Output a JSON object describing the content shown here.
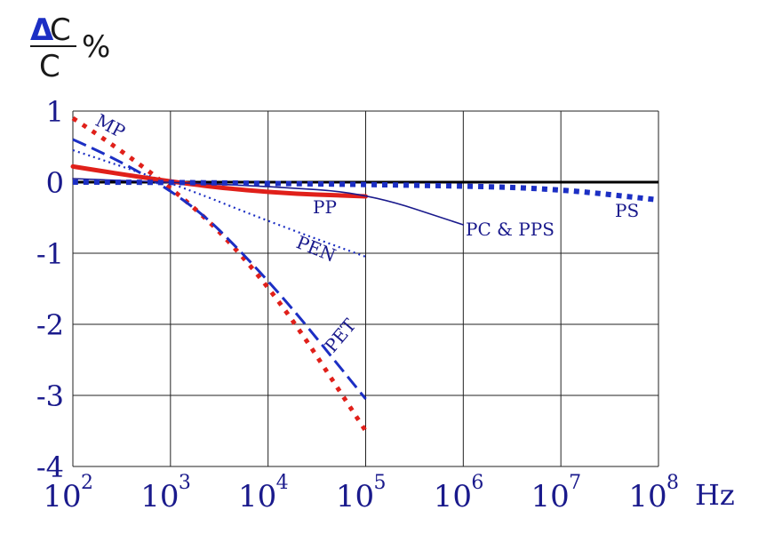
{
  "chart_data": {
    "type": "line",
    "ylabel": {
      "delta": "Δ",
      "numer": "C",
      "denom": "C",
      "unit": "%"
    },
    "xlabel_unit": "Hz",
    "x_scale": "log",
    "x_ticks": [
      {
        "base": "10",
        "exp": "2",
        "value": 100
      },
      {
        "base": "10",
        "exp": "3",
        "value": 1000
      },
      {
        "base": "10",
        "exp": "4",
        "value": 10000
      },
      {
        "base": "10",
        "exp": "5",
        "value": 100000
      },
      {
        "base": "10",
        "exp": "6",
        "value": 1000000
      },
      {
        "base": "10",
        "exp": "7",
        "value": 10000000
      },
      {
        "base": "10",
        "exp": "8",
        "value": 100000000
      }
    ],
    "y_ticks": [
      "1",
      "0",
      "-1",
      "-2",
      "-3",
      "-4"
    ],
    "xlim": [
      100,
      100000000
    ],
    "ylim": [
      -4,
      1
    ],
    "grid": true,
    "series": [
      {
        "name": "MP",
        "color": "#e0201a",
        "style": "dotted-thick",
        "x": [
          100,
          1000,
          10000,
          100000
        ],
        "y": [
          0.9,
          0.0,
          -1.4,
          -3.5
        ]
      },
      {
        "name": "PET",
        "color": "#1c2fc4",
        "style": "dashed",
        "x": [
          100,
          1000,
          10000,
          100000
        ],
        "y": [
          0.6,
          0.0,
          -1.35,
          -3.05
        ]
      },
      {
        "name": "PEN",
        "color": "#1c2fc4",
        "style": "dotted",
        "x": [
          100,
          1000,
          10000,
          100000
        ],
        "y": [
          0.45,
          0.0,
          -0.55,
          -1.05
        ]
      },
      {
        "name": "PP",
        "color": "#e0201a",
        "style": "solid-thick",
        "x": [
          100,
          1000,
          10000,
          100000
        ],
        "y": [
          0.22,
          0.0,
          -0.15,
          -0.2
        ]
      },
      {
        "name": "PC & PPS",
        "color": "#1a1a8c",
        "style": "solid-thin",
        "x": [
          100,
          1000,
          10000,
          100000,
          1000000
        ],
        "y": [
          0.05,
          0.0,
          -0.06,
          -0.15,
          -0.6
        ]
      },
      {
        "name": "PS",
        "color": "#1c2fc4",
        "style": "dotted-heavy",
        "x": [
          100,
          1000,
          1000000,
          10000000,
          100000000
        ],
        "y": [
          0.0,
          0.0,
          -0.05,
          -0.1,
          -0.25
        ]
      }
    ],
    "reference_line": {
      "y": 0,
      "color": "#000000"
    }
  }
}
